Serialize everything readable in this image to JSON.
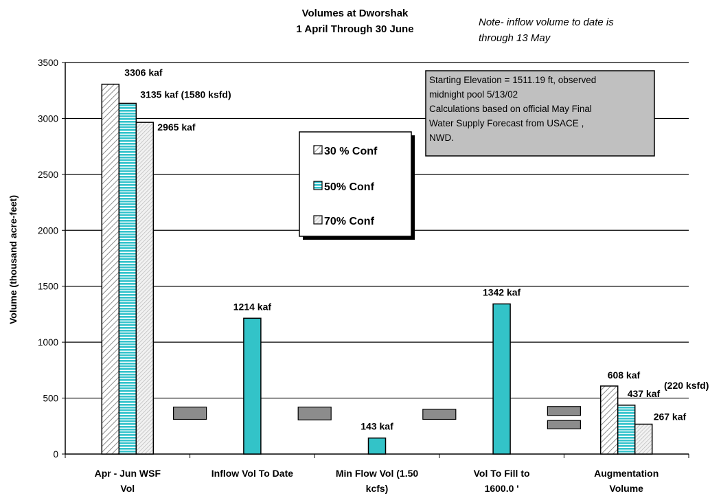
{
  "chart_data": {
    "type": "bar",
    "title": "Volumes at Dworshak",
    "subtitle": "1 April Through 30 June",
    "note": [
      "Note-  inflow volume to date is",
      "through 13 May"
    ],
    "ylabel": "Volume (thousand acre-feet)",
    "ylim": [
      0,
      3500
    ],
    "yticks": [
      0,
      500,
      1000,
      1500,
      2000,
      2500,
      3000,
      3500
    ],
    "grid": true,
    "colors": {
      "conf30_fill": "#ffffff",
      "conf30_hatch": "#8c8c8c",
      "conf50_fill": "#33c3cc",
      "conf50_stripe": "#ffffff",
      "conf70_fill": "#f2f2f2",
      "conf70_hatch": "#b8b8b8",
      "single": "#33c3c8",
      "gray_marker": "#8c8c8c",
      "box_fill": "#c0c0c0"
    },
    "categories": [
      [
        "Apr - Jun WSF",
        "Vol"
      ],
      [
        "Inflow Vol To Date",
        ""
      ],
      [
        "Min Flow Vol (1.50",
        "kcfs)"
      ],
      [
        "Vol To Fill to",
        "1600.0 '"
      ],
      [
        "Augmentation",
        "Volume"
      ]
    ],
    "legend": {
      "placement": "center",
      "entries": [
        {
          "label": "30 % Conf",
          "swatch": "conf30"
        },
        {
          "label": "50% Conf",
          "swatch": "conf50"
        },
        {
          "label": "70% Conf",
          "swatch": "conf70"
        }
      ]
    },
    "info_box": [
      "Starting Elevation = 1511.19 ft, observed",
      "midnight pool 5/13/02",
      "Calculations based on official May Final",
      "Water Supply Forecast from  USACE ,",
      "NWD."
    ],
    "bars": [
      {
        "category": 0,
        "slot": 0,
        "style": "conf30",
        "value": 3306,
        "label": "3306 kaf"
      },
      {
        "category": 0,
        "slot": 1,
        "style": "conf50",
        "value": 3135,
        "label": "3135 kaf    (1580 ksfd)"
      },
      {
        "category": 0,
        "slot": 2,
        "style": "conf70",
        "value": 2965,
        "label": "2965 kaf"
      },
      {
        "category": 1,
        "slot": 1,
        "style": "single",
        "value": 1214,
        "label": "1214 kaf"
      },
      {
        "category": 2,
        "slot": 1,
        "style": "single",
        "value": 143,
        "label": "143 kaf"
      },
      {
        "category": 3,
        "slot": 1,
        "style": "single",
        "value": 1342,
        "label": "1342 kaf"
      },
      {
        "category": 4,
        "slot": 0,
        "style": "conf30",
        "value": 608,
        "label": "608 kaf"
      },
      {
        "category": 4,
        "slot": 1,
        "style": "conf50",
        "value": 437,
        "label": "437 kaf"
      },
      {
        "category": 4,
        "slot": 2,
        "style": "conf70",
        "value": 267,
        "label": "267 kaf"
      }
    ],
    "extra_labels": [
      {
        "near_category": 4,
        "text": "(220 ksfd)"
      }
    ],
    "gray_markers": [
      {
        "category": 0,
        "y0": 310,
        "y1": 420
      },
      {
        "category": 1,
        "y0": 305,
        "y1": 420
      },
      {
        "category": 2,
        "y0": 310,
        "y1": 400
      },
      {
        "category": 3,
        "y0": 345,
        "y1": 425
      },
      {
        "category": 3,
        "y0": 225,
        "y1": 300
      }
    ]
  }
}
